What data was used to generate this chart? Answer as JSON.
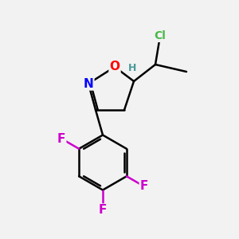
{
  "bg_color": "#f2f2f2",
  "atom_colors": {
    "C": "#000000",
    "H": "#4a9a9a",
    "N": "#0000ff",
    "O": "#ff0000",
    "F": "#cc00cc",
    "Cl": "#4ab84a"
  },
  "bond_color": "#000000",
  "bond_width": 1.8,
  "font_size_atom": 11,
  "font_size_small": 10
}
